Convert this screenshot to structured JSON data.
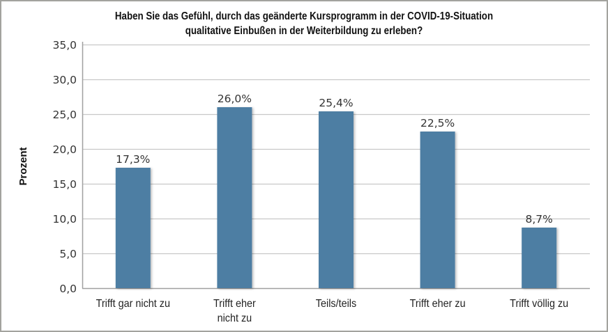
{
  "chart_data": {
    "type": "bar",
    "title": "Haben Sie das Gefühl, durch das geänderte Kursprogramm in der COVID-19-Situation qualitative Einbußen in der Weiterbildung zu erleben?",
    "title_lines": [
      "Haben Sie das Gefühl, durch das geänderte Kursprogramm in der COVID-19-Situation",
      "qualitative Einbußen in der Weiterbildung zu erleben?"
    ],
    "xlabel": "",
    "ylabel": "Prozent",
    "ylim": [
      0,
      35
    ],
    "yticks": [
      0,
      5,
      10,
      15,
      20,
      25,
      30,
      35
    ],
    "ytick_labels": [
      "0,0",
      "5,0",
      "10,0",
      "15,0",
      "20,0",
      "25,0",
      "30,0",
      "35,0"
    ],
    "grid": true,
    "legend": "none",
    "categories": [
      [
        "Trifft gar nicht zu"
      ],
      [
        "Trifft eher",
        "nicht zu"
      ],
      [
        "Teils/teils"
      ],
      [
        "Trifft eher zu"
      ],
      [
        "Trifft völlig zu"
      ]
    ],
    "values": [
      17.3,
      26.0,
      25.4,
      22.5,
      8.7
    ],
    "data_labels": [
      "17,3%",
      "26,0%",
      "25,4%",
      "22,5%",
      "8,7%"
    ],
    "colors": {
      "bar": "#4d7ea3",
      "grid": "#c8c8c8",
      "axis": "#a0a0a0",
      "frame": "#a3a39e"
    }
  }
}
